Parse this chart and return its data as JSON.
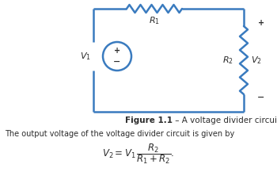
{
  "circuit_color": "#3a7bbf",
  "text_color": "#2c2c2c",
  "bg_color": "#ffffff",
  "lw": 1.8,
  "V1_label": "$V_1$",
  "V2_label": "$V_2$",
  "R1_label": "$R_1$",
  "R2_label": "$R_2$",
  "plus_sign": "+",
  "minus_sign": "−",
  "fig_caption_bold": "Figure 1.1",
  "fig_caption_rest": " – A voltage divider circuit",
  "body_text": "The output voltage of the voltage divider circuit is given by"
}
